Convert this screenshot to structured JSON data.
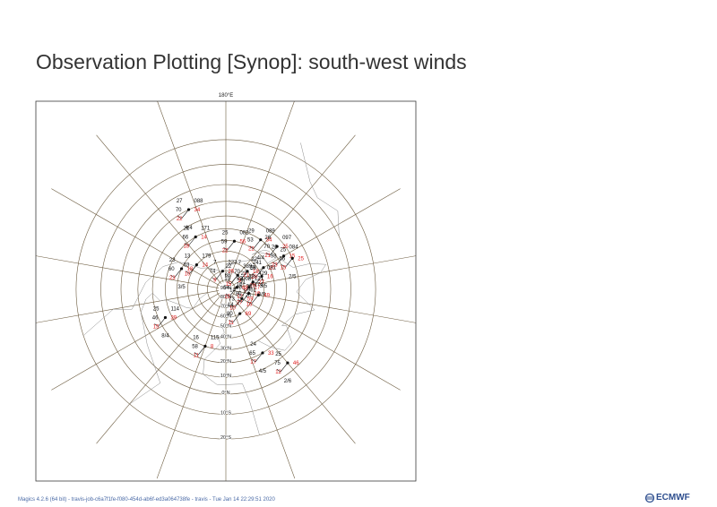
{
  "page": {
    "title": "Observation Plotting [Synop]: south-west winds",
    "footer": "Magics 4.2.6 (64 bit) - travis-job-c6a7f1fe-f080-454d-ab6f-ed3a064738fe - travis - Tue Jan 14 22:29:51 2020",
    "logo_text": "ECMWF"
  },
  "colors": {
    "frame": "#3b3b3b",
    "grid": "#6b5a3e",
    "coast": "#8c8c8c",
    "station_black": "#111111",
    "station_red": "#e02020"
  },
  "map": {
    "projection": "polar stereographic",
    "grid_labels": {
      "top": "180°E",
      "lat_labels": [
        "90°N",
        "80°N",
        "70°N",
        "60°N",
        "50°N",
        "40°N",
        "30°N",
        "20°N",
        "10°N",
        "0°N",
        "10°S",
        "20°S"
      ]
    },
    "stations": [
      {
        "lat": 10,
        "lon": -155,
        "pressure": "088",
        "temp": "27",
        "dew": "22",
        "vis": "70",
        "cloud": "4/4",
        "fig": "34"
      },
      {
        "lat": 30,
        "lon": -150,
        "pressure": "171",
        "temp": "21",
        "dew": "18",
        "vis": "66",
        "fig": "14"
      },
      {
        "lat": 40,
        "lon": 170,
        "pressure": "082",
        "temp": "25",
        "dew": "22",
        "vis": "59",
        "fig": "56"
      },
      {
        "lat": 30,
        "lon": 145,
        "pressure": "089",
        "temp": "29",
        "dew": "22",
        "vis": "53",
        "cloud": "4/4",
        "fig": "34"
      },
      {
        "lat": 25,
        "lon": 130,
        "pressure": "097",
        "temp": "26",
        "dew": "21",
        "vis": "70",
        "fig": "25"
      },
      {
        "lat": 25,
        "lon": 120,
        "pressure": "084",
        "temp": "26",
        "dew": "23",
        "vis": "98",
        "fig": "15"
      },
      {
        "lat": 20,
        "lon": 115,
        "temp": "25",
        "dew": "15",
        "vis": "56",
        "cloud": "2/5",
        "fig": "25"
      },
      {
        "lat": 45,
        "lon": 120,
        "temp": "22",
        "dew": "28",
        "vis": "56",
        "cloud": "3/5",
        "fig": "20"
      },
      {
        "lat": 50,
        "lon": 110,
        "pressure": "091",
        "temp": "29",
        "dew": "20",
        "vis": "28",
        "cloud": "0/9",
        "fig": "16"
      },
      {
        "lat": 60,
        "lon": 130,
        "pressure": "241",
        "temp": "7",
        "dew": "3",
        "vis": "70",
        "fig": "19"
      },
      {
        "lat": 60,
        "lon": 105,
        "pressure": "429",
        "temp": "23",
        "dew": "7",
        "vis": "71",
        "fig": "27"
      },
      {
        "lat": 65,
        "lon": 95,
        "pressure": "121",
        "temp": "23",
        "dew": "12",
        "vis": "40",
        "fig": "17"
      },
      {
        "lat": 65,
        "lon": 80,
        "pressure": "174",
        "temp": "10",
        "dew": "27",
        "vis": "80",
        "fig": "16"
      },
      {
        "lat": 55,
        "lon": 80,
        "temp": "28",
        "dew": "16",
        "vis": "20",
        "fig": "49"
      },
      {
        "lat": 70,
        "lon": 140,
        "pressure": "389",
        "temp": "22",
        "dew": "15",
        "vis": "68",
        "fig": "21"
      },
      {
        "lat": 78,
        "lon": 100,
        "pressure": "008",
        "temp": "19",
        "dew": "15",
        "vis": "54",
        "fig": "68"
      },
      {
        "lat": 70,
        "lon": 60,
        "pressure": "961",
        "temp": "14",
        "dew": "10",
        "vis": "73",
        "fig": "59"
      },
      {
        "lat": 60,
        "lon": 30,
        "temp": "14",
        "dew": "11",
        "vis": "80",
        "fig": "69"
      },
      {
        "lat": 70,
        "lon": -170,
        "pressure": "223",
        "temp": "7",
        "dew": "9",
        "vis": "74",
        "fig": "26"
      },
      {
        "lat": 50,
        "lon": -130,
        "pressure": "179",
        "temp": "13",
        "dew": "10",
        "vis": "63",
        "fig": "14"
      },
      {
        "lat": 40,
        "lon": -115,
        "temp": "23",
        "dew": "23",
        "vis": "60",
        "cloud": "3/5",
        "fig": "18"
      },
      {
        "lat": 25,
        "lon": -65,
        "pressure": "114",
        "temp": "25",
        "dew": "15",
        "vis": "46",
        "cloud": "8/4",
        "fig": "39"
      },
      {
        "lat": 30,
        "lon": -20,
        "pressure": "115",
        "temp": "16",
        "dew": "11",
        "vis": "58",
        "fig": "8"
      },
      {
        "lat": 20,
        "lon": 30,
        "temp": "24",
        "dew": "17",
        "vis": "65",
        "cloud": "4/5",
        "fig": "33"
      },
      {
        "lat": 5,
        "lon": 40,
        "temp": "25",
        "dew": "12",
        "vis": "75",
        "cloud": "2/6",
        "fig": "46"
      }
    ]
  }
}
